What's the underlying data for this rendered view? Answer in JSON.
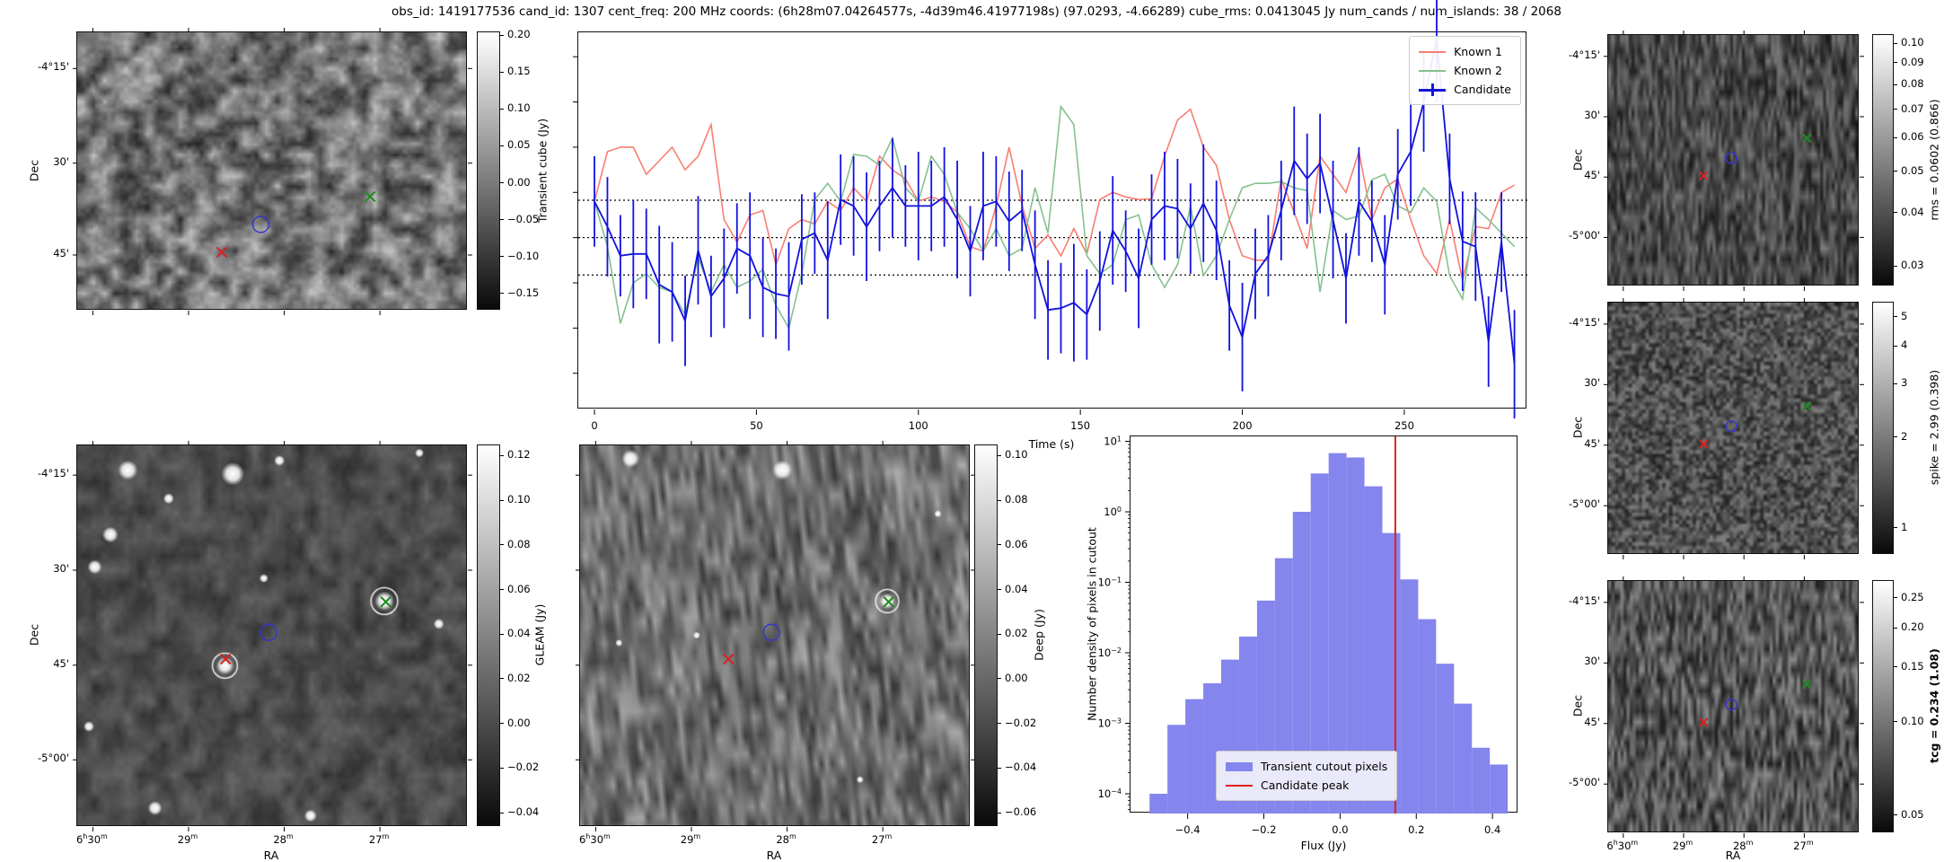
{
  "title": "obs_id: 1419177536 cand_id: 1307 cent_freq: 200 MHz coords: (6h28m07.04264577s, -4d39m46.41977198s) (97.0293, -4.66289) cube_rms: 0.0413045 Jy num_cands / num_islands: 38 / 2068",
  "axes": {
    "dec_label": "Dec",
    "ra_label": "RA",
    "dec_ticks": [
      "-4°15'",
      "30'",
      "45'",
      "-5°00'"
    ],
    "dec_ticks_transient": [
      "-4°15'",
      "30'",
      "45'"
    ],
    "ra_ticks": [
      "6h30m",
      "29m",
      "28m",
      "27m"
    ]
  },
  "panels": {
    "transient_cube": {
      "colorbar": {
        "label": "Transient cube (Jy)",
        "ticks": [
          0.2,
          0.15,
          0.1,
          0.05,
          0.0,
          -0.05,
          -0.1,
          -0.15
        ],
        "scale": "linear",
        "range": [
          0.205,
          -0.172
        ]
      }
    },
    "gleam": {
      "colorbar": {
        "label": "GLEAM (Jy)",
        "ticks": [
          0.12,
          0.1,
          0.08,
          0.06,
          0.04,
          0.02,
          0.0,
          -0.02,
          -0.04
        ],
        "scale": "linear",
        "range": [
          0.125,
          -0.046
        ]
      }
    },
    "deep": {
      "colorbar": {
        "label": "Deep (Jy)",
        "ticks": [
          0.1,
          0.08,
          0.06,
          0.04,
          0.02,
          0.0,
          -0.02,
          -0.04,
          -0.06
        ],
        "scale": "linear",
        "range": [
          0.105,
          -0.066
        ]
      }
    },
    "rms": {
      "colorbar": {
        "label": "rms = 0.0602 (0.866)",
        "ticks": [
          0.1,
          0.09,
          0.08,
          0.07,
          0.06,
          0.05,
          0.04,
          0.03
        ],
        "scale": "log",
        "range": [
          0.105,
          0.027
        ]
      }
    },
    "spike": {
      "colorbar": {
        "label": "spike = 2.99 (0.398)",
        "ticks": [
          5,
          4,
          3,
          2,
          1
        ],
        "scale": "log",
        "range": [
          5.6,
          0.82
        ]
      }
    },
    "tcg": {
      "colorbar": {
        "label": "tcg = 0.234 (1.08)",
        "ticks": [
          0.25,
          0.2,
          0.15,
          0.1,
          0.05
        ],
        "scale": "log",
        "range": [
          0.285,
          0.044
        ],
        "bold": true
      }
    }
  },
  "markers": {
    "known1": {
      "shape": "x",
      "color": "#d62222"
    },
    "known2": {
      "shape": "x",
      "color": "#1e8c1e"
    },
    "candidate": {
      "shape": "circle",
      "color": "#3434cf"
    },
    "positions": {
      "transient": {
        "known1": [
          0.37,
          0.79
        ],
        "candidate": [
          0.47,
          0.69
        ],
        "known2": [
          0.75,
          0.59
        ]
      },
      "wide": {
        "known1": [
          0.38,
          0.56
        ],
        "candidate": [
          0.49,
          0.49
        ],
        "known2": [
          0.79,
          0.41
        ]
      }
    }
  },
  "chart_data": [
    {
      "type": "line",
      "name": "lightcurve",
      "xlabel": "Time (s)",
      "x_start": 0,
      "x_step": 4,
      "x_ticks": [
        0,
        50,
        100,
        150,
        200,
        250
      ],
      "xlim": [
        -5,
        288
      ],
      "ylim": [
        -0.19,
        0.227
      ],
      "hlines": [
        0.0413,
        0,
        -0.0413
      ],
      "legend_position": "upper right",
      "series": [
        {
          "name": "Known 1",
          "color": "#f97e72",
          "values": [
            0.04,
            0.095,
            0.1,
            0.1,
            0.07,
            0.085,
            0.1,
            0.075,
            0.09,
            0.125,
            0.02,
            -0.005,
            0.025,
            0.03,
            -0.03,
            0.01,
            0.02,
            0.015,
            0.04,
            0.03,
            0.055,
            0.04,
            0.09,
            0.075,
            0.065,
            0.04,
            0.045,
            0.04,
            0.028,
            -0.01,
            -0.015,
            0.035,
            0.1,
            0.036,
            -0.012,
            0.003,
            -0.02,
            0.01,
            -0.018,
            0.042,
            0.05,
            0.045,
            0.042,
            0.043,
            0.09,
            0.13,
            0.142,
            0.1,
            0.08,
            0.02,
            -0.02,
            -0.025,
            -0.025,
            0.065,
            0.028,
            -0.012,
            0.09,
            0.07,
            0.05,
            0.095,
            0.02,
            0.055,
            0.065,
            0.02,
            -0.02,
            -0.04,
            0.02,
            -0.047,
            0.012,
            0.01,
            0.05,
            0.058
          ]
        },
        {
          "name": "Known 2",
          "color": "#85c18f",
          "values": [
            0.04,
            -0.01,
            -0.095,
            -0.05,
            -0.04,
            -0.055,
            -0.06,
            -0.085,
            -0.022,
            -0.06,
            -0.03,
            -0.055,
            -0.048,
            -0.035,
            -0.075,
            -0.1,
            -0.04,
            0.042,
            0.06,
            0.04,
            0.092,
            0.09,
            0.08,
            0.11,
            0.055,
            0.04,
            0.09,
            0.07,
            0.028,
            0.01,
            -0.015,
            0.01,
            -0.02,
            -0.012,
            0.055,
            0.005,
            0.145,
            0.125,
            -0.02,
            -0.04,
            -0.03,
            0.02,
            0.025,
            -0.03,
            -0.055,
            -0.03,
            0.035,
            -0.042,
            -0.02,
            0.02,
            0.055,
            0.06,
            0.06,
            0.062,
            0.055,
            0.052,
            -0.06,
            0.03,
            0.02,
            0.024,
            0.064,
            0.07,
            0.035,
            0.028,
            0.055,
            0.04,
            -0.042,
            -0.068,
            0.033,
            0.02,
            0.005,
            -0.01
          ]
        },
        {
          "name": "Candidate",
          "color": "#1212dd",
          "values": [
            0.04,
            0.012,
            -0.02,
            -0.018,
            -0.018,
            -0.052,
            -0.06,
            -0.092,
            -0.014,
            -0.065,
            -0.045,
            -0.012,
            -0.02,
            -0.055,
            -0.062,
            -0.065,
            -0.002,
            0.005,
            -0.025,
            0.042,
            0.035,
            0.012,
            0.035,
            0.055,
            0.035,
            0.035,
            0.035,
            0.045,
            0.02,
            -0.015,
            0.035,
            0.04,
            0.018,
            0.03,
            -0.03,
            -0.08,
            -0.078,
            -0.072,
            -0.085,
            -0.048,
            0.008,
            -0.015,
            -0.045,
            0.02,
            0.035,
            0.032,
            0.01,
            0.038,
            0.008,
            -0.075,
            -0.11,
            -0.04,
            -0.02,
            0.03,
            0.085,
            0.065,
            0.082,
            0.02,
            -0.045,
            0.04,
            0.018,
            -0.03,
            0.07,
            0.095,
            0.15,
            0.22,
            0.065,
            -0.004,
            -0.01,
            -0.115,
            -0.005,
            -0.14
          ],
          "yerr": [
            0.05,
            0.055,
            0.045,
            0.06,
            0.05,
            0.065,
            0.055,
            0.05,
            0.06,
            0.045,
            0.055,
            0.05,
            0.07,
            0.055,
            0.05,
            0.06,
            0.05,
            0.045,
            0.065,
            0.05,
            0.055,
            0.06,
            0.05,
            0.055,
            0.045,
            0.06,
            0.05,
            0.055,
            0.065,
            0.05,
            0.06,
            0.05,
            0.055,
            0.045,
            0.06,
            0.055,
            0.05,
            0.065,
            0.05,
            0.055,
            0.06,
            0.045,
            0.055,
            0.05,
            0.06,
            0.055,
            0.05,
            0.065,
            0.055,
            0.05,
            0.06,
            0.05,
            0.045,
            0.055,
            0.06,
            0.05,
            0.055,
            0.065,
            0.05,
            0.06,
            0.045,
            0.055,
            0.05,
            0.06,
            0.055,
            0.07,
            0.05,
            0.055,
            0.06,
            0.05,
            0.055,
            0.06
          ]
        }
      ]
    },
    {
      "type": "bar",
      "name": "flux-histogram",
      "xlabel": "Flux (Jy)",
      "ylabel": "Number density of pixels in cutout",
      "yscale": "log",
      "xlim": [
        -0.55,
        0.468
      ],
      "ylim_exp": [
        1.07,
        -4.28
      ],
      "bin_start": -0.5,
      "bin_width": 0.047,
      "densities": [
        0.0001,
        0.00095,
        0.0022,
        0.0037,
        0.008,
        0.017,
        0.055,
        0.22,
        1.0,
        3.5,
        6.8,
        5.9,
        2.3,
        0.5,
        0.11,
        0.03,
        0.007,
        0.0019,
        0.00045,
        0.00026
      ],
      "bar_color": "#8585ee",
      "bar_label": "Transient cutout pixels",
      "vline": {
        "label": "Candidate peak",
        "x": 0.145,
        "color": "#e02020"
      },
      "x_ticks": [
        -0.4,
        -0.2,
        0.0,
        0.2,
        0.4
      ],
      "y_tick_exponents": [
        1,
        0,
        -1,
        -2,
        -3,
        -4
      ]
    }
  ]
}
